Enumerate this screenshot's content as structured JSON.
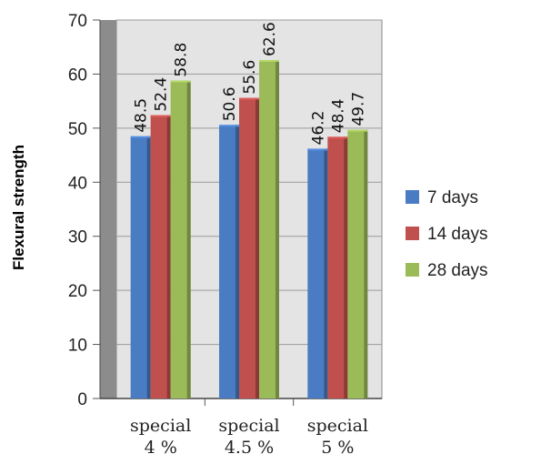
{
  "chart_data": {
    "type": "bar",
    "title": "",
    "ylabel": "Flexural strength",
    "xlabel": "",
    "ylim": [
      0,
      70
    ],
    "yticks": [
      0,
      10,
      20,
      30,
      40,
      50,
      60,
      70
    ],
    "grid": true,
    "legend_position": "right",
    "categories": [
      {
        "line1": "special",
        "line2": "4 %"
      },
      {
        "line1": "special",
        "line2": "4.5 %"
      },
      {
        "line1": "special",
        "line2": "5 %"
      }
    ],
    "series": [
      {
        "name": "7 days",
        "color": "#4a7cc3",
        "values": [
          48.5,
          50.6,
          46.2
        ]
      },
      {
        "name": "14 days",
        "color": "#c0504d",
        "values": [
          52.4,
          55.6,
          48.4
        ]
      },
      {
        "name": "28 days",
        "color": "#9bbb59",
        "values": [
          58.8,
          62.6,
          49.7
        ]
      }
    ]
  }
}
